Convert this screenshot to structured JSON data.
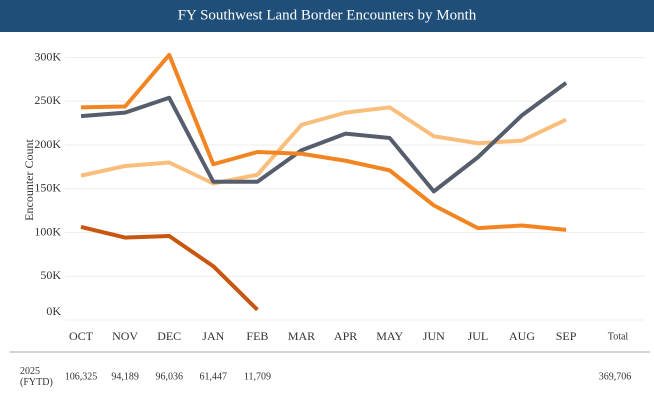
{
  "chart_data": {
    "type": "line",
    "title": "FY Southwest Land Border Encounters by Month",
    "ylabel": "Encounter Count",
    "categories": [
      "OCT",
      "NOV",
      "DEC",
      "JAN",
      "FEB",
      "MAR",
      "APR",
      "MAY",
      "JUN",
      "JUL",
      "AUG",
      "SEP"
    ],
    "series": [
      {
        "color": "#f9be7c",
        "values": [
          165000,
          176000,
          180000,
          156000,
          166000,
          223000,
          237000,
          243000,
          210000,
          202000,
          205000,
          229000
        ]
      },
      {
        "color": "#565e6e",
        "values": [
          233000,
          237000,
          254000,
          158000,
          158000,
          194000,
          213000,
          208000,
          147000,
          186000,
          234000,
          271000
        ]
      },
      {
        "color": "#f28522",
        "values": [
          243000,
          244000,
          303000,
          178000,
          192000,
          190000,
          182000,
          171000,
          131000,
          105000,
          108000,
          103000
        ]
      },
      {
        "name": "2025 (FYTD)",
        "color": "#c8560f",
        "values": [
          106325,
          94189,
          96036,
          61447,
          11709,
          null,
          null,
          null,
          null,
          null,
          null,
          null
        ],
        "value_labels": [
          "106,325",
          "94,189",
          "96,036",
          "61,447",
          "11,709",
          null,
          null,
          null,
          null,
          null,
          null,
          null
        ]
      }
    ],
    "total": {
      "label": "Total",
      "value": 369706,
      "value_label": "369,706"
    },
    "ylim": [
      0,
      320000
    ],
    "yticks": [
      {
        "value": 0,
        "label": "0K"
      },
      {
        "value": 50000,
        "label": "50K"
      },
      {
        "value": 100000,
        "label": "100K"
      },
      {
        "value": 150000,
        "label": "150K"
      },
      {
        "value": 200000,
        "label": "200K"
      },
      {
        "value": 250000,
        "label": "250K"
      },
      {
        "value": 300000,
        "label": "300K"
      }
    ],
    "grid": true
  }
}
